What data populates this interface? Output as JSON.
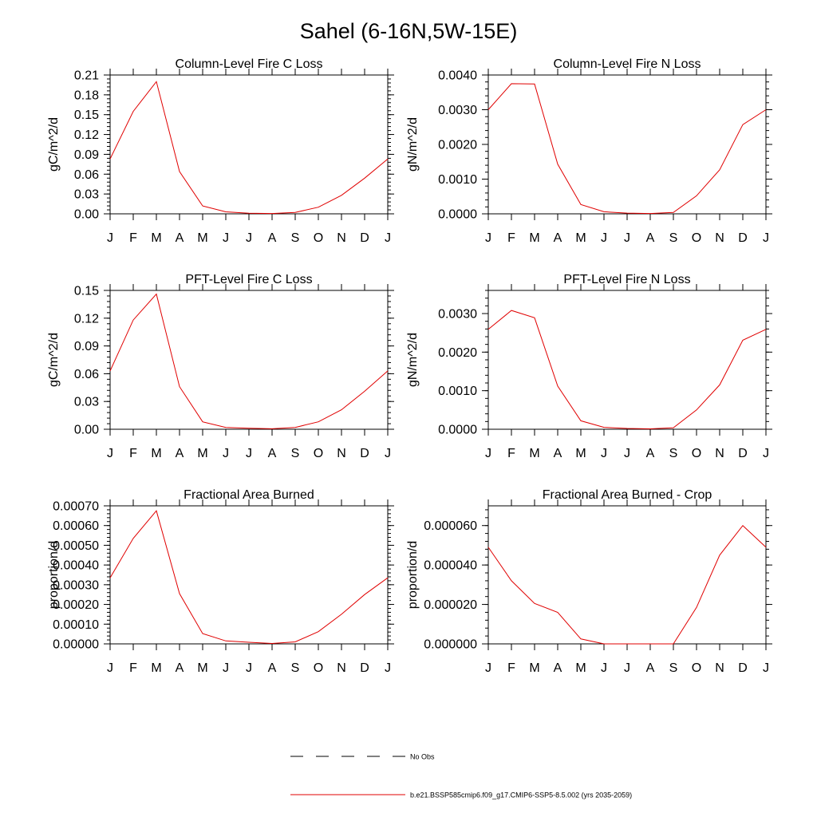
{
  "title": "Sahel (6-16N,5W-15E)",
  "months": [
    "J",
    "F",
    "M",
    "A",
    "M",
    "J",
    "J",
    "A",
    "S",
    "O",
    "N",
    "D",
    "J"
  ],
  "legend": {
    "dashed_label": "No Obs",
    "solid_label": "b.e21.BSSP585cmip6.f09_g17.CMIP6-SSP5-8.5.002 (yrs 2035-2059)"
  },
  "colors": {
    "model_line": "#e00000",
    "obs_line": "#000000"
  },
  "chart_data": [
    {
      "type": "line",
      "title": "Column-Level Fire C Loss",
      "ylabel": "gC/m^2/d",
      "ylim": [
        0,
        0.21
      ],
      "yticks": [
        "0.00",
        "0.03",
        "0.06",
        "0.09",
        "0.12",
        "0.15",
        "0.18",
        "0.21"
      ],
      "series": [
        {
          "values": [
            0.083,
            0.155,
            0.2,
            0.064,
            0.012,
            0.003,
            0.001,
            0.0005,
            0.002,
            0.01,
            0.028,
            0.054,
            0.083
          ]
        }
      ]
    },
    {
      "type": "line",
      "title": "Column-Level Fire N Loss",
      "ylabel": "gN/m^2/d",
      "ylim": [
        0,
        0.004
      ],
      "yticks": [
        "0.0000",
        "0.0010",
        "0.0020",
        "0.0030",
        "0.0040"
      ],
      "series": [
        {
          "values": [
            0.003,
            0.00375,
            0.00374,
            0.00143,
            0.00027,
            6e-05,
            2e-05,
            1e-05,
            4e-05,
            0.00052,
            0.00127,
            0.00257,
            0.003
          ]
        }
      ]
    },
    {
      "type": "line",
      "title": "PFT-Level Fire C Loss",
      "ylabel": "gC/m^2/d",
      "ylim": [
        0,
        0.15
      ],
      "yticks": [
        "0.00",
        "0.03",
        "0.06",
        "0.09",
        "0.12",
        "0.15"
      ],
      "series": [
        {
          "values": [
            0.063,
            0.118,
            0.146,
            0.046,
            0.008,
            0.002,
            0.001,
            0.0005,
            0.002,
            0.008,
            0.021,
            0.041,
            0.063
          ]
        }
      ]
    },
    {
      "type": "line",
      "title": "PFT-Level Fire N Loss",
      "ylabel": "gN/m^2/d",
      "ylim": [
        0,
        0.0036
      ],
      "yticks": [
        "0.0000",
        "0.0010",
        "0.0020",
        "0.0030"
      ],
      "series": [
        {
          "values": [
            0.00259,
            0.00308,
            0.00289,
            0.00112,
            0.00022,
            5e-05,
            2e-05,
            1e-05,
            4e-05,
            0.0005,
            0.00115,
            0.00231,
            0.00259
          ]
        }
      ]
    },
    {
      "type": "line",
      "title": "Fractional Area Burned",
      "ylabel": "proportion/d",
      "ylim": [
        0,
        0.0007
      ],
      "yticks": [
        "0.00000",
        "0.00010",
        "0.00020",
        "0.00030",
        "0.00040",
        "0.00050",
        "0.00060",
        "0.00070"
      ],
      "series": [
        {
          "values": [
            0.000335,
            0.000535,
            0.000675,
            0.000255,
            5.2e-05,
            1.5e-05,
            8e-06,
            2e-06,
            1e-05,
            6.2e-05,
            0.00015,
            0.00025,
            0.000335
          ]
        }
      ]
    },
    {
      "type": "line",
      "title": "Fractional Area Burned - Crop",
      "ylabel": "proportion/d",
      "ylim": [
        0,
        7e-05
      ],
      "yticks": [
        "0.000000",
        "0.000020",
        "0.000040",
        "0.000060"
      ],
      "series": [
        {
          "values": [
            4.9e-05,
            3.2e-05,
            2.05e-05,
            1.6e-05,
            2.5e-06,
            0,
            0,
            0,
            0,
            1.85e-05,
            4.5e-05,
            6e-05,
            4.9e-05
          ]
        }
      ]
    }
  ]
}
